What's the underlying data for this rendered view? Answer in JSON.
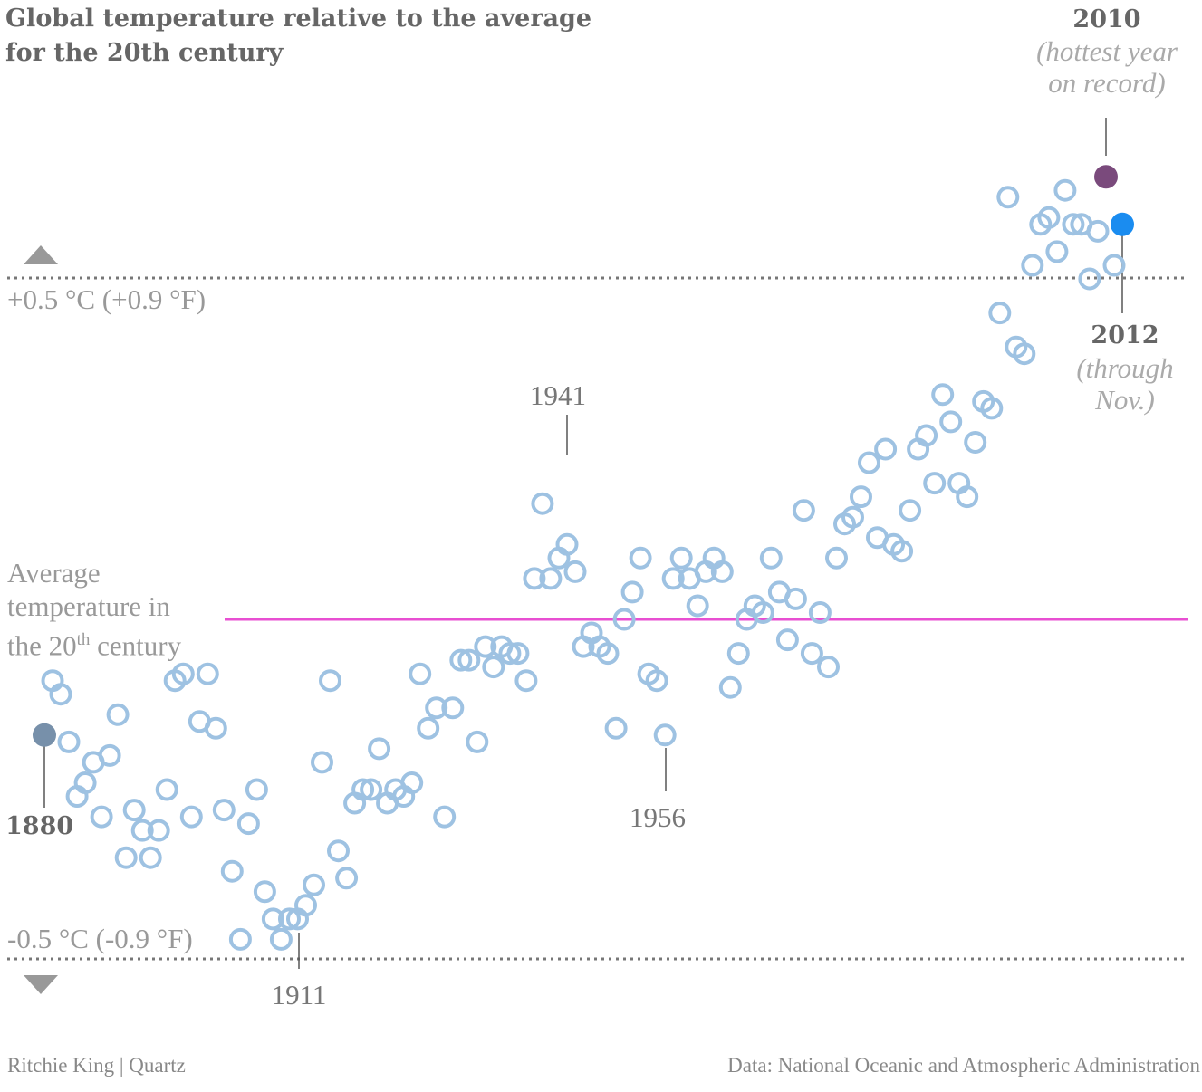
{
  "title": "Global temperature relative to the average for the 20th century",
  "reference_lines": {
    "upper_label": "+0.5 °C (+0.9 °F)",
    "lower_label": "-0.5 °C (-0.9 °F)",
    "average_label_1": "Average",
    "average_label_2": "temperature in",
    "average_label_3a": "the 20",
    "average_label_3sup": "th",
    "average_label_3b": " century"
  },
  "annotations": {
    "y1880": "1880",
    "y1911": "1911",
    "y1941": "1941",
    "y1956": "1956",
    "y2010": "2010",
    "y2010_note_1": "(hottest year",
    "y2010_note_2": "on record)",
    "y2012": "2012",
    "y2012_note_1": "(through",
    "y2012_note_2": "Nov.)"
  },
  "footer": {
    "credit": "Ritchie King | Quartz",
    "source": "Data: National Oceanic and Atmospheric Administration"
  },
  "colors": {
    "point": "#9ec2e2",
    "average_line": "#e84fd2",
    "highlight_1880": "#7790aa",
    "highlight_2010": "#7a4a7c",
    "highlight_2012": "#1a8cf0",
    "dotted_line": "#777777"
  },
  "chart_data": {
    "type": "scatter",
    "title": "Global temperature relative to the average for the 20th century",
    "x_unit": "year",
    "y_unit": "°C anomaly",
    "ylim": [
      -0.55,
      0.7
    ],
    "reference_lines": [
      0.5,
      0,
      -0.5
    ],
    "points": [
      {
        "x": 1880,
        "y": -0.17
      },
      {
        "x": 1881,
        "y": -0.09
      },
      {
        "x": 1882,
        "y": -0.11
      },
      {
        "x": 1883,
        "y": -0.18
      },
      {
        "x": 1884,
        "y": -0.26
      },
      {
        "x": 1885,
        "y": -0.24
      },
      {
        "x": 1886,
        "y": -0.21
      },
      {
        "x": 1887,
        "y": -0.29
      },
      {
        "x": 1888,
        "y": -0.2
      },
      {
        "x": 1889,
        "y": -0.14
      },
      {
        "x": 1890,
        "y": -0.35
      },
      {
        "x": 1891,
        "y": -0.28
      },
      {
        "x": 1892,
        "y": -0.31
      },
      {
        "x": 1893,
        "y": -0.35
      },
      {
        "x": 1894,
        "y": -0.31
      },
      {
        "x": 1895,
        "y": -0.25
      },
      {
        "x": 1896,
        "y": -0.09
      },
      {
        "x": 1897,
        "y": -0.08
      },
      {
        "x": 1898,
        "y": -0.29
      },
      {
        "x": 1899,
        "y": -0.15
      },
      {
        "x": 1900,
        "y": -0.08
      },
      {
        "x": 1901,
        "y": -0.16
      },
      {
        "x": 1902,
        "y": -0.28
      },
      {
        "x": 1903,
        "y": -0.37
      },
      {
        "x": 1904,
        "y": -0.47
      },
      {
        "x": 1905,
        "y": -0.3
      },
      {
        "x": 1906,
        "y": -0.25
      },
      {
        "x": 1907,
        "y": -0.4
      },
      {
        "x": 1908,
        "y": -0.44
      },
      {
        "x": 1909,
        "y": -0.47
      },
      {
        "x": 1910,
        "y": -0.44
      },
      {
        "x": 1911,
        "y": -0.44
      },
      {
        "x": 1912,
        "y": -0.42
      },
      {
        "x": 1913,
        "y": -0.39
      },
      {
        "x": 1914,
        "y": -0.21
      },
      {
        "x": 1915,
        "y": -0.09
      },
      {
        "x": 1916,
        "y": -0.34
      },
      {
        "x": 1917,
        "y": -0.38
      },
      {
        "x": 1918,
        "y": -0.27
      },
      {
        "x": 1919,
        "y": -0.25
      },
      {
        "x": 1920,
        "y": -0.25
      },
      {
        "x": 1921,
        "y": -0.19
      },
      {
        "x": 1922,
        "y": -0.27
      },
      {
        "x": 1923,
        "y": -0.25
      },
      {
        "x": 1924,
        "y": -0.26
      },
      {
        "x": 1925,
        "y": -0.24
      },
      {
        "x": 1926,
        "y": -0.08
      },
      {
        "x": 1927,
        "y": -0.16
      },
      {
        "x": 1928,
        "y": -0.13
      },
      {
        "x": 1929,
        "y": -0.29
      },
      {
        "x": 1930,
        "y": -0.13
      },
      {
        "x": 1931,
        "y": -0.06
      },
      {
        "x": 1932,
        "y": -0.06
      },
      {
        "x": 1933,
        "y": -0.18
      },
      {
        "x": 1934,
        "y": -0.04
      },
      {
        "x": 1935,
        "y": -0.07
      },
      {
        "x": 1936,
        "y": -0.04
      },
      {
        "x": 1937,
        "y": -0.05
      },
      {
        "x": 1938,
        "y": -0.05
      },
      {
        "x": 1939,
        "y": -0.09
      },
      {
        "x": 1940,
        "y": 0.06
      },
      {
        "x": 1941,
        "y": 0.17
      },
      {
        "x": 1942,
        "y": 0.06
      },
      {
        "x": 1943,
        "y": 0.09
      },
      {
        "x": 1944,
        "y": 0.11
      },
      {
        "x": 1945,
        "y": 0.07
      },
      {
        "x": 1946,
        "y": -0.04
      },
      {
        "x": 1947,
        "y": -0.02
      },
      {
        "x": 1948,
        "y": -0.04
      },
      {
        "x": 1949,
        "y": -0.05
      },
      {
        "x": 1950,
        "y": -0.16
      },
      {
        "x": 1951,
        "y": 0.0
      },
      {
        "x": 1952,
        "y": 0.04
      },
      {
        "x": 1953,
        "y": 0.09
      },
      {
        "x": 1954,
        "y": -0.08
      },
      {
        "x": 1955,
        "y": -0.09
      },
      {
        "x": 1956,
        "y": -0.17
      },
      {
        "x": 1957,
        "y": 0.06
      },
      {
        "x": 1958,
        "y": 0.09
      },
      {
        "x": 1959,
        "y": 0.06
      },
      {
        "x": 1960,
        "y": 0.02
      },
      {
        "x": 1961,
        "y": 0.07
      },
      {
        "x": 1962,
        "y": 0.09
      },
      {
        "x": 1963,
        "y": 0.07
      },
      {
        "x": 1964,
        "y": -0.1
      },
      {
        "x": 1965,
        "y": -0.05
      },
      {
        "x": 1966,
        "y": 0.0
      },
      {
        "x": 1967,
        "y": 0.02
      },
      {
        "x": 1968,
        "y": 0.01
      },
      {
        "x": 1969,
        "y": 0.09
      },
      {
        "x": 1970,
        "y": 0.04
      },
      {
        "x": 1971,
        "y": -0.03
      },
      {
        "x": 1972,
        "y": 0.03
      },
      {
        "x": 1973,
        "y": 0.16
      },
      {
        "x": 1974,
        "y": -0.05
      },
      {
        "x": 1975,
        "y": 0.01
      },
      {
        "x": 1976,
        "y": -0.07
      },
      {
        "x": 1977,
        "y": 0.09
      },
      {
        "x": 1978,
        "y": 0.14
      },
      {
        "x": 1979,
        "y": 0.15
      },
      {
        "x": 1980,
        "y": 0.18
      },
      {
        "x": 1981,
        "y": 0.23
      },
      {
        "x": 1982,
        "y": 0.12
      },
      {
        "x": 1983,
        "y": 0.25
      },
      {
        "x": 1984,
        "y": 0.11
      },
      {
        "x": 1985,
        "y": 0.1
      },
      {
        "x": 1986,
        "y": 0.16
      },
      {
        "x": 1987,
        "y": 0.25
      },
      {
        "x": 1988,
        "y": 0.27
      },
      {
        "x": 1989,
        "y": 0.2
      },
      {
        "x": 1990,
        "y": 0.33
      },
      {
        "x": 1991,
        "y": 0.29
      },
      {
        "x": 1992,
        "y": 0.2
      },
      {
        "x": 1993,
        "y": 0.18
      },
      {
        "x": 1994,
        "y": 0.26
      },
      {
        "x": 1995,
        "y": 0.32
      },
      {
        "x": 1996,
        "y": 0.31
      },
      {
        "x": 1997,
        "y": 0.45
      },
      {
        "x": 1998,
        "y": 0.62
      },
      {
        "x": 1999,
        "y": 0.4
      },
      {
        "x": 2000,
        "y": 0.39
      },
      {
        "x": 2001,
        "y": 0.52
      },
      {
        "x": 2002,
        "y": 0.58
      },
      {
        "x": 2003,
        "y": 0.59
      },
      {
        "x": 2004,
        "y": 0.54
      },
      {
        "x": 2005,
        "y": 0.63
      },
      {
        "x": 2006,
        "y": 0.58
      },
      {
        "x": 2007,
        "y": 0.58
      },
      {
        "x": 2008,
        "y": 0.5
      },
      {
        "x": 2009,
        "y": 0.57
      },
      {
        "x": 2010,
        "y": 0.65
      },
      {
        "x": 2011,
        "y": 0.52
      },
      {
        "x": 2012,
        "y": 0.58
      }
    ],
    "highlighted": [
      {
        "x": 1880,
        "y": -0.17,
        "filled": true
      },
      {
        "x": 2010,
        "y": 0.65,
        "filled": true
      },
      {
        "x": 2012,
        "y": 0.58,
        "filled": true
      }
    ],
    "grid": false,
    "legend": "none"
  }
}
